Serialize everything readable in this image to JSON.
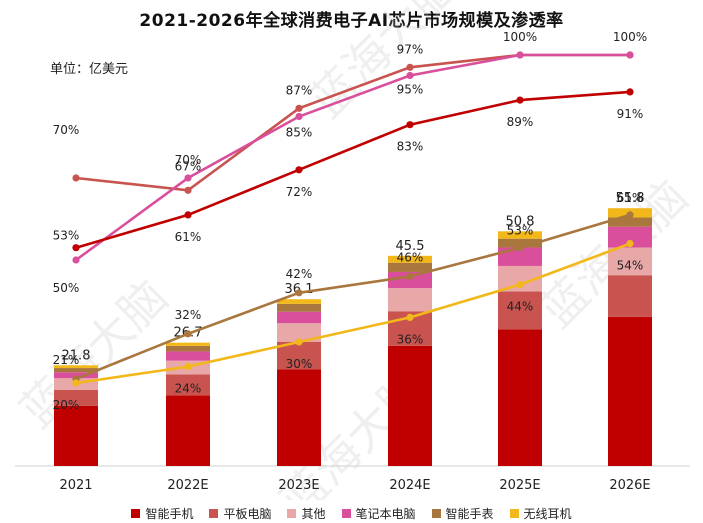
{
  "chart_data": {
    "title": "2021-2026年全球消费电子AI芯片市场规模及渗透率",
    "unit": "单位：亿美元",
    "categories": [
      "2021",
      "2022E",
      "2023E",
      "2024E",
      "2025E",
      "2026E"
    ],
    "totals": [
      "21.8",
      "26.7",
      "36.1",
      "45.5",
      "50.8",
      "55.8"
    ],
    "bar_series": [
      {
        "name": "智能手机",
        "color": "#c00000",
        "values": [
          13.0,
          15.3,
          20.9,
          26.0,
          29.6,
          32.3
        ]
      },
      {
        "name": "平板电脑",
        "color": "#c9534f",
        "values": [
          3.5,
          4.5,
          6.0,
          7.5,
          8.2,
          9.0
        ]
      },
      {
        "name": "其他",
        "color": "#e8a8a8",
        "values": [
          2.5,
          3.0,
          4.0,
          5.0,
          5.5,
          6.0
        ]
      },
      {
        "name": "笔记本电脑",
        "color": "#d94f9c",
        "values": [
          1.3,
          2.0,
          2.5,
          3.5,
          4.0,
          4.5
        ]
      },
      {
        "name": "智能手表",
        "color": "#a9763e",
        "values": [
          0.9,
          1.2,
          1.7,
          2.0,
          1.9,
          2.0
        ]
      },
      {
        "name": "无线耳机",
        "color": "#f2b81a",
        "values": [
          0.6,
          0.7,
          1.0,
          1.5,
          1.6,
          2.0
        ]
      }
    ],
    "line_series": [
      {
        "name": "平板电脑",
        "color": "#c9534f",
        "values": [
          70,
          67,
          87,
          97,
          100,
          100
        ],
        "labels": [
          "70%",
          "67%",
          "87%",
          "97%",
          "100%",
          "100%"
        ]
      },
      {
        "name": "笔记本电脑",
        "color": "#d94f9c",
        "values": [
          50,
          70,
          85,
          95,
          100,
          100
        ],
        "labels": [
          "50%",
          "70%",
          "85%",
          "95%",
          "",
          ""
        ]
      },
      {
        "name": "智能手机",
        "color": "#c00000",
        "values": [
          53,
          61,
          72,
          83,
          89,
          91
        ],
        "labels": [
          "53%",
          "61%",
          "72%",
          "83%",
          "89%",
          "91%"
        ]
      },
      {
        "name": "智能手表",
        "color": "#a9763e",
        "values": [
          21,
          32,
          42,
          46,
          53,
          61
        ],
        "labels": [
          "21%",
          "32%",
          "42%",
          "46%",
          "53%",
          "61%"
        ]
      },
      {
        "name": "无线耳机",
        "color": "#f2b81a",
        "values": [
          20,
          24,
          30,
          36,
          44,
          54
        ],
        "labels": [
          "20%",
          "24%",
          "30%",
          "36%",
          "44%",
          "54%"
        ]
      }
    ],
    "legend": [
      "智能手机",
      "平板电脑",
      "其他",
      "笔记本电脑",
      "智能手表",
      "无线耳机"
    ]
  },
  "watermark": "蓝海大脑"
}
